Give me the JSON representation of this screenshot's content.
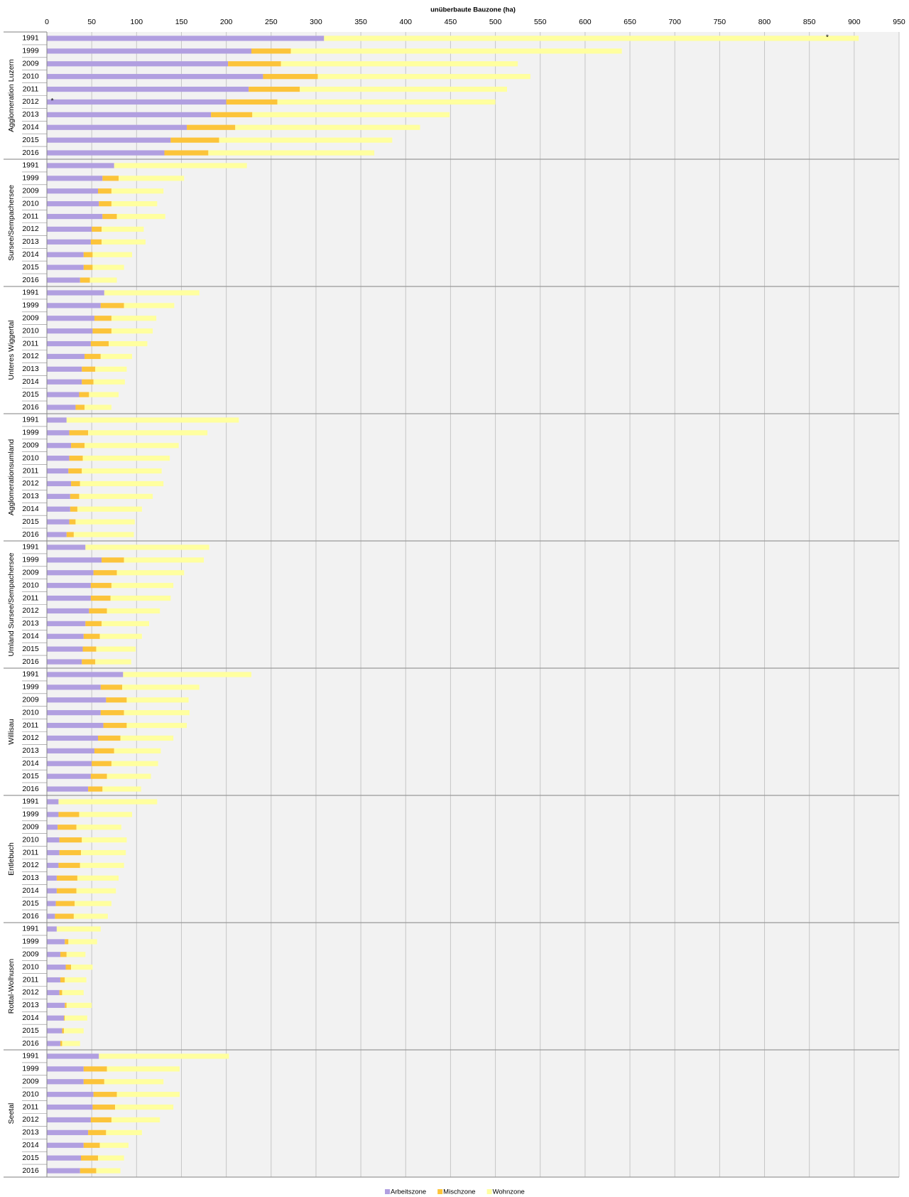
{
  "chart_data": {
    "type": "stacked-barh",
    "x_label": "unüberbaute Bauzone (ha)",
    "xlim": [
      0,
      950
    ],
    "xticks": [
      0,
      50,
      100,
      150,
      200,
      250,
      300,
      350,
      400,
      450,
      500,
      550,
      600,
      650,
      700,
      750,
      800,
      850,
      900,
      950
    ],
    "grid": true,
    "legend": "bottom",
    "annotations": [
      "*",
      "*"
    ],
    "groups": [
      {
        "name": "Agglomeration Luzern",
        "categories": [
          "1991",
          "1999",
          "2009",
          "2010",
          "2011",
          "2012",
          "2013",
          "2014",
          "2015",
          "2016"
        ]
      },
      {
        "name": "Sursee/Sempachersee",
        "categories": [
          "1991",
          "1999",
          "2009",
          "2010",
          "2011",
          "2012",
          "2013",
          "2014",
          "2015",
          "2016"
        ]
      },
      {
        "name": "Unteres Wiggertal",
        "categories": [
          "1991",
          "1999",
          "2009",
          "2010",
          "2011",
          "2012",
          "2013",
          "2014",
          "2015",
          "2016"
        ]
      },
      {
        "name": "Agglomerationsumland",
        "categories": [
          "1991",
          "1999",
          "2009",
          "2010",
          "2011",
          "2012",
          "2013",
          "2014",
          "2015",
          "2016"
        ]
      },
      {
        "name": "Umland Sursee/Sempachersee",
        "categories": [
          "1991",
          "1999",
          "2009",
          "2010",
          "2011",
          "2012",
          "2013",
          "2014",
          "2015",
          "2016"
        ]
      },
      {
        "name": "Willisau",
        "categories": [
          "1991",
          "1999",
          "2009",
          "2010",
          "2011",
          "2012",
          "2013",
          "2014",
          "2015",
          "2016"
        ]
      },
      {
        "name": "Entlebuch",
        "categories": [
          "1991",
          "1999",
          "2009",
          "2010",
          "2011",
          "2012",
          "2013",
          "2014",
          "2015",
          "2016"
        ]
      },
      {
        "name": "Rottal-Wolhusen",
        "categories": [
          "1991",
          "1999",
          "2009",
          "2010",
          "2011",
          "2012",
          "2013",
          "2014",
          "2015",
          "2016"
        ]
      },
      {
        "name": "Seetal",
        "categories": [
          "1991",
          "1999",
          "2009",
          "2010",
          "2011",
          "2012",
          "2013",
          "2014",
          "2015",
          "2016"
        ]
      }
    ],
    "series": [
      {
        "name": "Arbeitszone",
        "color": "#b19fe0",
        "values": [
          309,
          228,
          202,
          241,
          225,
          200,
          183,
          156,
          138,
          131,
          75,
          62,
          57,
          58,
          62,
          50,
          49,
          41,
          41,
          37,
          64,
          60,
          53,
          51,
          49,
          42,
          39,
          39,
          36,
          32,
          22,
          25,
          27,
          25,
          24,
          27,
          26,
          26,
          25,
          22,
          43,
          61,
          52,
          49,
          49,
          47,
          43,
          41,
          40,
          39,
          85,
          60,
          66,
          60,
          63,
          57,
          53,
          50,
          49,
          46,
          13,
          13,
          12,
          14,
          14,
          13,
          11,
          11,
          10,
          9,
          11,
          20,
          15,
          21,
          15,
          14,
          20,
          19,
          17,
          15,
          58,
          41,
          41,
          52,
          51,
          49,
          46,
          41,
          38,
          37
        ]
      },
      {
        "name": "Mischzone",
        "color": "#fcc43a",
        "values": [
          0,
          44,
          59,
          61,
          57,
          57,
          46,
          54,
          54,
          49,
          0,
          18,
          15,
          14,
          16,
          11,
          12,
          10,
          10,
          11,
          0,
          26,
          19,
          21,
          20,
          18,
          15,
          13,
          11,
          10,
          0,
          21,
          15,
          15,
          15,
          10,
          10,
          8,
          7,
          8,
          0,
          25,
          26,
          23,
          22,
          20,
          18,
          18,
          15,
          15,
          0,
          24,
          23,
          26,
          26,
          25,
          22,
          22,
          18,
          16,
          0,
          23,
          21,
          25,
          24,
          24,
          23,
          22,
          21,
          21,
          0,
          4,
          7,
          6,
          5,
          3,
          2,
          1,
          2,
          2,
          0,
          26,
          23,
          26,
          25,
          23,
          20,
          18,
          19,
          18
        ]
      },
      {
        "name": "Wohnzone",
        "color": "#ffff9f",
        "values": [
          596,
          369,
          264,
          237,
          231,
          243,
          220,
          206,
          193,
          185,
          148,
          73,
          58,
          51,
          54,
          47,
          49,
          44,
          35,
          30,
          106,
          56,
          50,
          46,
          43,
          35,
          35,
          35,
          33,
          30,
          192,
          133,
          105,
          97,
          89,
          93,
          82,
          72,
          66,
          67,
          138,
          89,
          75,
          69,
          67,
          59,
          53,
          47,
          44,
          40,
          143,
          86,
          69,
          73,
          67,
          59,
          52,
          52,
          49,
          43,
          110,
          59,
          50,
          50,
          50,
          49,
          46,
          44,
          41,
          38,
          49,
          32,
          21,
          24,
          24,
          24,
          28,
          25,
          22,
          20,
          145,
          81,
          66,
          70,
          65,
          54,
          40,
          32,
          29,
          27
        ]
      }
    ]
  }
}
